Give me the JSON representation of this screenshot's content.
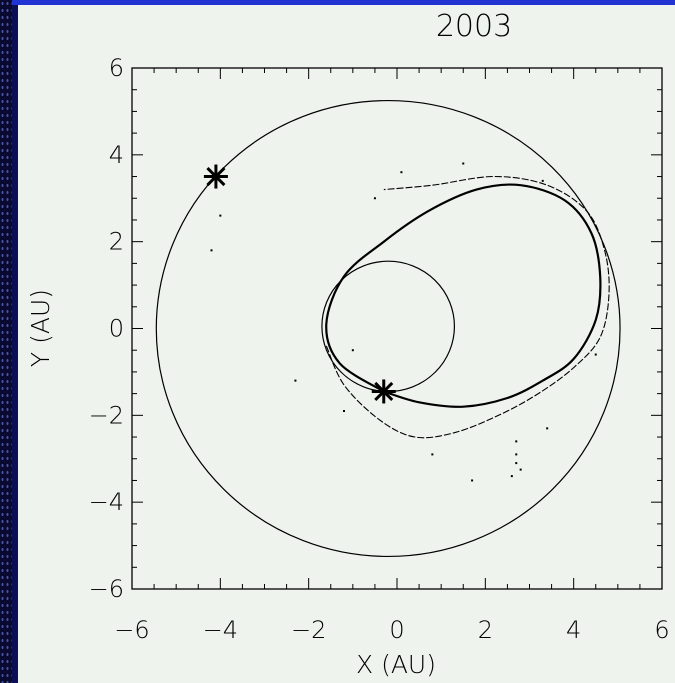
{
  "chart_data": {
    "type": "scatter",
    "title": "2003",
    "xlabel": "X (AU)",
    "ylabel": "Y (AU)",
    "xlim": [
      -6,
      6
    ],
    "ylim": [
      -6,
      6
    ],
    "xticks": [
      -6,
      -4,
      -2,
      0,
      2,
      4,
      6
    ],
    "yticks": [
      -6,
      -4,
      -2,
      0,
      2,
      4,
      6
    ],
    "tick_labels_x": [
      "−6",
      "−4",
      "−2",
      "0",
      "2",
      "4",
      "6"
    ],
    "tick_labels_y": [
      "−6",
      "−4",
      "−2",
      "0",
      "2",
      "4",
      "6"
    ],
    "grid": false,
    "orbits": [
      {
        "cx": -0.2,
        "cy": 0,
        "r": 5.25
      },
      {
        "cx": -0.2,
        "cy": 0.05,
        "r": 1.5
      }
    ],
    "markers": [
      {
        "x": -4.1,
        "y": 3.5,
        "symbol": "asterisk"
      },
      {
        "x": -0.3,
        "y": -1.45,
        "symbol": "asterisk"
      }
    ],
    "stream_loop": [
      [
        -0.3,
        -1.45
      ],
      [
        0.5,
        -1.7
      ],
      [
        1.5,
        -1.8
      ],
      [
        2.5,
        -1.6
      ],
      [
        3.3,
        -1.2
      ],
      [
        4.0,
        -0.7
      ],
      [
        4.5,
        0.2
      ],
      [
        4.6,
        1.2
      ],
      [
        4.4,
        2.2
      ],
      [
        3.8,
        2.95
      ],
      [
        2.8,
        3.3
      ],
      [
        1.8,
        3.2
      ],
      [
        0.7,
        2.7
      ],
      [
        -0.3,
        2.0
      ],
      [
        -1.2,
        1.2
      ],
      [
        -1.6,
        0.1
      ],
      [
        -1.3,
        -0.8
      ],
      [
        -0.3,
        -1.45
      ]
    ],
    "stream_outer": [
      [
        -1.6,
        -0.4
      ],
      [
        -1.2,
        -1.3
      ],
      [
        -0.4,
        -2.1
      ],
      [
        0.4,
        -2.5
      ],
      [
        1.3,
        -2.4
      ],
      [
        2.3,
        -2.0
      ],
      [
        3.2,
        -1.5
      ],
      [
        4.0,
        -0.9
      ],
      [
        4.6,
        -0.2
      ],
      [
        4.8,
        0.8
      ],
      [
        4.7,
        1.8
      ],
      [
        4.3,
        2.7
      ],
      [
        3.4,
        3.3
      ],
      [
        2.2,
        3.5
      ],
      [
        0.8,
        3.3
      ],
      [
        -0.3,
        3.2
      ]
    ],
    "scatter_points": [
      [
        -4.0,
        2.6
      ],
      [
        -4.2,
        1.8
      ],
      [
        -1.2,
        -1.9
      ],
      [
        -2.3,
        -1.2
      ],
      [
        -1.0,
        -0.5
      ],
      [
        2.7,
        -2.9
      ],
      [
        2.7,
        -3.1
      ],
      [
        2.8,
        -3.25
      ],
      [
        2.6,
        -3.4
      ],
      [
        0.8,
        -2.9
      ],
      [
        2.7,
        -2.6
      ],
      [
        3.4,
        -2.3
      ],
      [
        -0.5,
        3.0
      ],
      [
        0.1,
        3.6
      ],
      [
        1.5,
        3.8
      ],
      [
        3.3,
        3.4
      ],
      [
        4.5,
        -0.6
      ],
      [
        1.7,
        -3.5
      ]
    ]
  }
}
